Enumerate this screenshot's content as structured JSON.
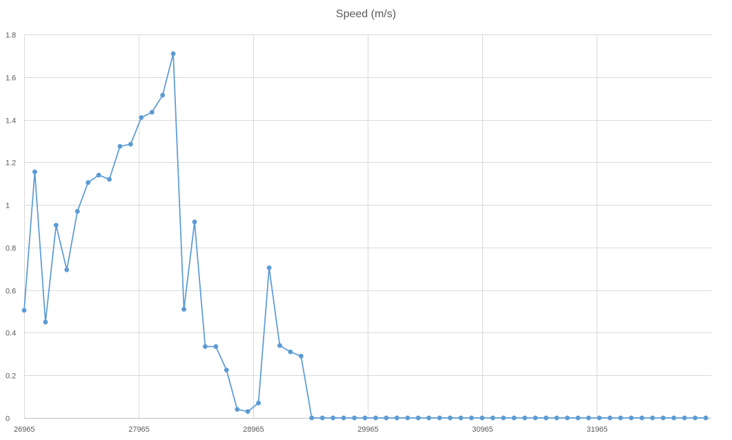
{
  "chart_data": {
    "type": "line",
    "title": "Speed (m/s)",
    "xlabel": "",
    "ylabel": "",
    "xlim": [
      26965,
      32965
    ],
    "ylim": [
      0,
      1.8
    ],
    "x_ticks": [
      26965,
      27965,
      28965,
      29965,
      30965,
      31965
    ],
    "x_tick_labels": [
      "26965",
      "27965",
      "28965",
      "29965",
      "30965",
      "31965"
    ],
    "y_ticks": [
      0,
      0.2,
      0.4,
      0.6,
      0.8,
      1,
      1.2,
      1.4,
      1.6,
      1.8
    ],
    "y_tick_labels": [
      "0",
      "0.2",
      "0.4",
      "0.6",
      "0.8",
      "1",
      "1.2",
      "1.4",
      "1.6",
      "1.8"
    ],
    "grid": "vertical and horizontal",
    "legend": "none",
    "series_color": "#5b9bd5",
    "grid_color": "#d9d9d9",
    "series": [
      {
        "x": [
          26965,
          27058,
          27151,
          27244,
          27337,
          27430,
          27523,
          27616,
          27709,
          27802,
          27895,
          27988,
          28081,
          28174,
          28267,
          28360,
          28453,
          28546,
          28639,
          28732,
          28825,
          28918,
          29011,
          29104,
          29197,
          29290,
          29383,
          29476,
          29569,
          29662,
          29755,
          29848,
          29941,
          30034,
          30127,
          30220,
          30313,
          30406,
          30499,
          30592,
          30685,
          30778,
          30871,
          30964,
          31057,
          31150,
          31243,
          31336,
          31429,
          31522,
          31615,
          31708,
          31801,
          31894,
          31987,
          32080,
          32173,
          32266,
          32359,
          32452,
          32545,
          32638,
          32731,
          32824,
          32917
        ],
        "values": [
          0.505,
          1.155,
          0.45,
          0.905,
          0.695,
          0.97,
          1.105,
          1.14,
          1.12,
          1.275,
          1.285,
          1.41,
          1.435,
          1.515,
          1.71,
          0.51,
          0.92,
          0.335,
          0.335,
          0.225,
          0.04,
          0.03,
          0.07,
          0.705,
          0.34,
          0.31,
          0.29,
          0,
          0,
          0,
          0,
          0,
          0,
          0,
          0,
          0,
          0,
          0,
          0,
          0,
          0,
          0,
          0,
          0,
          0,
          0,
          0,
          0,
          0,
          0,
          0,
          0,
          0,
          0,
          0,
          0,
          0,
          0,
          0,
          0,
          0,
          0,
          0,
          0,
          0
        ]
      }
    ]
  }
}
